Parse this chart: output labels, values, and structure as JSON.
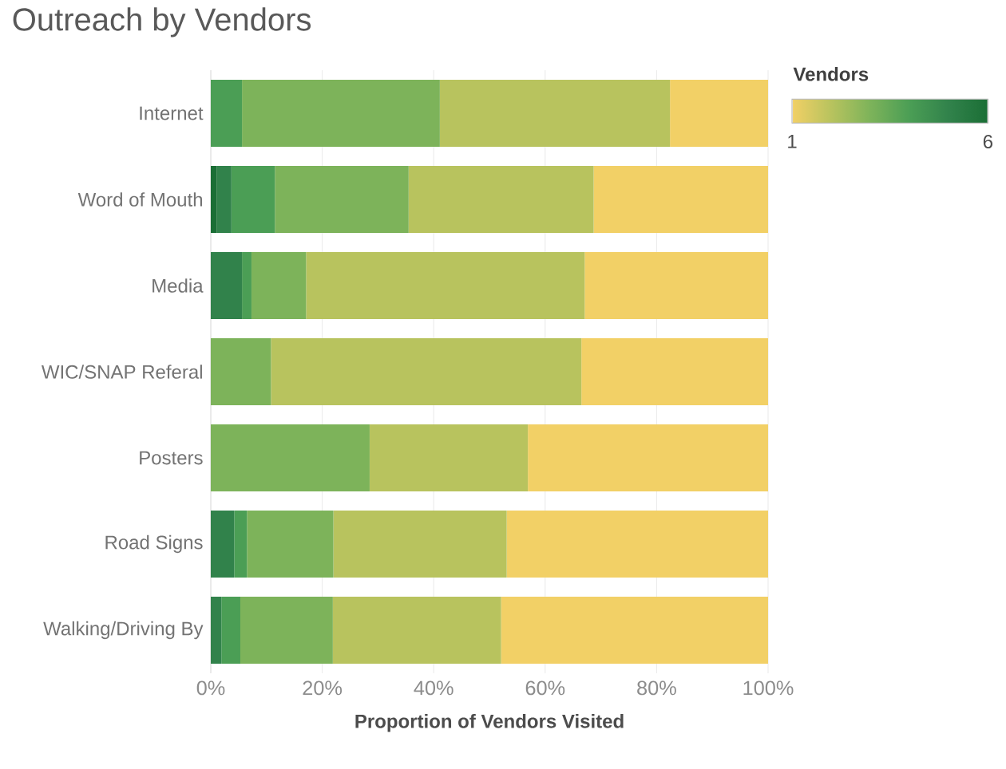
{
  "chart_data": {
    "type": "bar",
    "title": "Outreach by Vendors",
    "orientation": "horizontal",
    "stacked": true,
    "categories": [
      "Internet",
      "Word of Mouth",
      "Media",
      "WIC/SNAP Referal",
      "Posters",
      "Road Signs",
      "Walking/Driving By"
    ],
    "series": [
      {
        "color": "#1a6e35",
        "values": [
          null,
          1.1,
          null,
          null,
          null,
          null,
          null
        ]
      },
      {
        "color": "#31824b",
        "values": [
          null,
          2.6,
          5.6,
          null,
          null,
          4.2,
          1.9
        ]
      },
      {
        "color": "#4b9e55",
        "values": [
          5.6,
          7.8,
          1.7,
          null,
          null,
          2.3,
          3.4
        ]
      },
      {
        "color": "#7db35a",
        "values": [
          35.5,
          24.0,
          9.8,
          10.8,
          28.5,
          15.5,
          16.6
        ]
      },
      {
        "color": "#b8c35e",
        "values": [
          41.3,
          33.2,
          50.0,
          55.7,
          28.4,
          31.1,
          30.2
        ]
      },
      {
        "color": "#f2d066",
        "values": [
          17.6,
          31.3,
          32.9,
          33.5,
          43.1,
          46.9,
          47.9
        ]
      }
    ],
    "xlabel": "Proportion of Vendors Visited",
    "xlim": [
      0,
      100
    ],
    "xticks": [
      {
        "value": 0,
        "label": "0%"
      },
      {
        "value": 20,
        "label": "20%"
      },
      {
        "value": 40,
        "label": "40%"
      },
      {
        "value": 60,
        "label": "60%"
      },
      {
        "value": 80,
        "label": "80%"
      },
      {
        "value": 100,
        "label": "100%"
      }
    ],
    "grid": "x",
    "clabel": "Vendors",
    "clim": [
      1,
      6
    ],
    "cticks": [
      1,
      6
    ]
  }
}
